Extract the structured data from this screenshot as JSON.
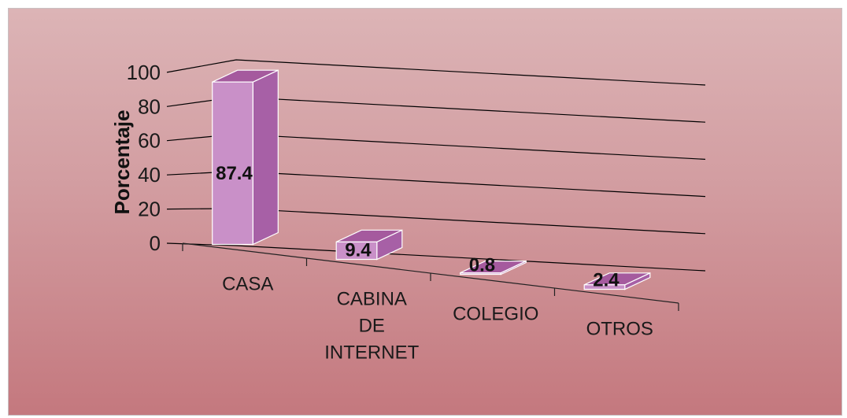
{
  "chart_data": {
    "type": "bar",
    "style": "3d-column",
    "categories": [
      "CASA",
      "CABINA DE INTERNET",
      "COLEGIO",
      "OTROS"
    ],
    "category_lines": [
      [
        "CASA"
      ],
      [
        "CABINA",
        "DE",
        "INTERNET"
      ],
      [
        "COLEGIO"
      ],
      [
        "OTROS"
      ]
    ],
    "values": [
      87.4,
      9.4,
      0.8,
      2.4
    ],
    "data_labels": [
      "87.4",
      "9.4",
      "0.8",
      "2.4"
    ],
    "ylabel": "Porcentaje",
    "ylim": [
      0,
      100
    ],
    "yticks": [
      0,
      20,
      40,
      60,
      80,
      100
    ],
    "grid": true,
    "legend": "none",
    "colors": {
      "bar_front": "#c990c8",
      "bar_side": "#a760a6",
      "bar_top": "#a55a9e",
      "bar_edge": "#ffffff",
      "grid": "#000000",
      "background_top": "#dcb4b6",
      "background_bottom": "#c4787e"
    }
  }
}
